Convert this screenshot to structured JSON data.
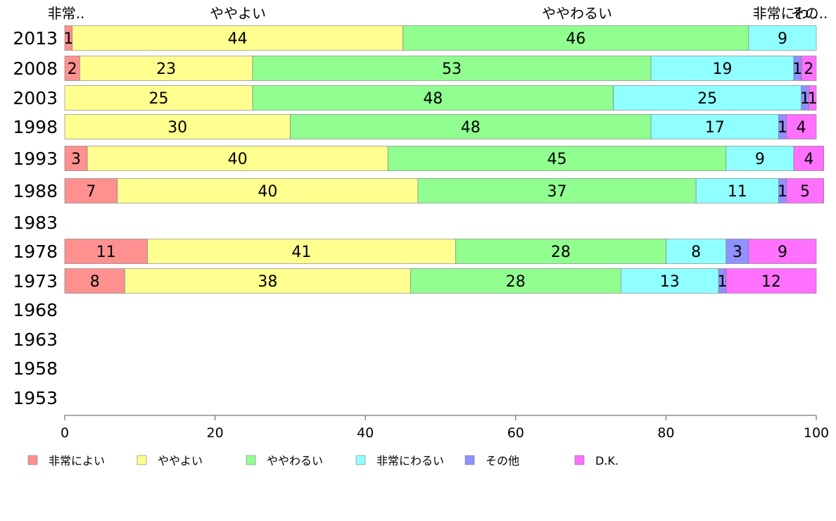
{
  "chart_data": {
    "type": "bar",
    "orientation": "horizontal",
    "stacked": true,
    "categories": [
      "2013",
      "2008",
      "2003",
      "1998",
      "1993",
      "1988",
      "1983",
      "1978",
      "1973",
      "1968",
      "1963",
      "1958",
      "1953"
    ],
    "series": [
      {
        "name": "非常によい",
        "color": "#ff9090",
        "values": [
          1,
          2,
          0,
          0,
          3,
          7,
          null,
          11,
          8,
          null,
          null,
          null,
          null
        ]
      },
      {
        "name": "ややよい",
        "color": "#ffff90",
        "values": [
          44,
          23,
          25,
          30,
          40,
          40,
          null,
          41,
          38,
          null,
          null,
          null,
          null
        ]
      },
      {
        "name": "ややわるい",
        "color": "#90ff90",
        "values": [
          46,
          53,
          48,
          48,
          45,
          37,
          null,
          28,
          28,
          null,
          null,
          null,
          null
        ]
      },
      {
        "name": "非常にわるい",
        "color": "#90ffff",
        "values": [
          9,
          19,
          25,
          17,
          9,
          11,
          null,
          8,
          13,
          null,
          null,
          null,
          null
        ]
      },
      {
        "name": "その他",
        "color": "#9090ff",
        "values": [
          0,
          1,
          1,
          1,
          0,
          1,
          null,
          3,
          1,
          null,
          null,
          null,
          null
        ]
      },
      {
        "name": "D.K.",
        "color": "#ff70ff",
        "values": [
          0,
          2,
          1,
          4,
          4,
          5,
          null,
          9,
          12,
          null,
          null,
          null,
          null
        ]
      }
    ],
    "top_labels": [
      "非常..",
      "ややよい",
      "ややわるい",
      "非常にわ..",
      "その.."
    ],
    "xlim": [
      0,
      100
    ],
    "xticks": [
      "0",
      "20",
      "40",
      "60",
      "80",
      "100"
    ],
    "grid": false,
    "legend_position": "bottom"
  }
}
